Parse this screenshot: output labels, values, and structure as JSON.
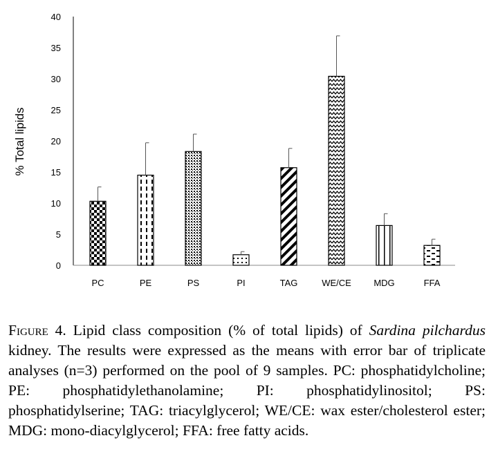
{
  "chart_data": {
    "type": "bar",
    "categories": [
      "PC",
      "PE",
      "PS",
      "PI",
      "TAG",
      "WE/CE",
      "MDG",
      "FFA"
    ],
    "values": [
      10.3,
      14.5,
      18.3,
      1.7,
      15.7,
      30.4,
      6.4,
      3.2
    ],
    "errors": [
      2.3,
      5.2,
      2.8,
      0.5,
      3.1,
      6.5,
      1.9,
      1.0
    ],
    "patterns": [
      "checker",
      "dashed-vertical",
      "dots-dense",
      "dots-sparse",
      "diagonal-thick",
      "zigzag",
      "vertical-lines",
      "horizontal-dashes"
    ],
    "ylabel": "% Total lipids",
    "ylim": [
      0,
      40
    ],
    "yticks": [
      0,
      5,
      10,
      15,
      20,
      25,
      30,
      35,
      40
    ],
    "grid": false,
    "legend": "none"
  },
  "caption": {
    "label": "Figure 4.",
    "text_1": " Lipid class composition (% of total lipids) of ",
    "species": "Sardina pilchardus",
    "text_2": " kidney. The results were expressed as the means with error bar of triplicate analyses (n=3) performed on the pool of 9 samples. PC: phosphatidylcholine; PE: phosphatidylethanolamine; PI: phosphatidylinositol; PS: phosphatidylserine; TAG: triacylglycerol; WE/CE: wax ester/cholesterol ester; MDG: mono-diacylglycerol; FFA: free fatty acids."
  }
}
